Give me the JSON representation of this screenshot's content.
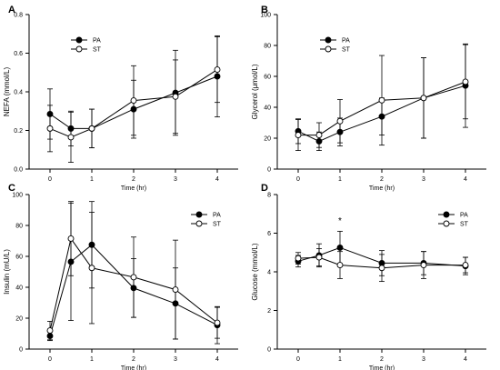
{
  "chart_data": [
    {
      "panel": "A",
      "type": "line",
      "ylabel": "NEFA (mmol/L)",
      "xlabel": "Time (hr)",
      "ylim": [
        0.0,
        0.8
      ],
      "yticks": [
        0.0,
        0.2,
        0.4,
        0.6,
        0.8
      ],
      "ytick_labels": [
        "0.0",
        "0.2",
        "0.4",
        "0.6",
        "0.8"
      ],
      "xlim": [
        -0.5,
        4.5
      ],
      "xticks": [
        0,
        1,
        2,
        3,
        4
      ],
      "xtick_labels": [
        "0",
        "1",
        "2",
        "3",
        "4"
      ],
      "legend_position": "upper-left",
      "annotations": [],
      "series": [
        {
          "name": "PA",
          "marker": "filled",
          "x": [
            0,
            0.5,
            1,
            2,
            3,
            4
          ],
          "y": [
            0.285,
            0.21,
            0.21,
            0.31,
            0.395,
            0.48
          ],
          "err": [
            0.13,
            0.09,
            0.1,
            0.15,
            0.22,
            0.21
          ]
        },
        {
          "name": "ST",
          "marker": "open",
          "x": [
            0,
            0.5,
            1,
            2,
            3,
            4
          ],
          "y": [
            0.21,
            0.165,
            0.21,
            0.355,
            0.375,
            0.515
          ],
          "err": [
            0.12,
            0.13,
            0.1,
            0.18,
            0.19,
            0.17
          ]
        }
      ]
    },
    {
      "panel": "B",
      "type": "line",
      "ylabel": "Glycerol (μmol/L)",
      "xlabel": "Time (hr)",
      "ylim": [
        0,
        100
      ],
      "yticks": [
        0,
        20,
        40,
        60,
        80,
        100
      ],
      "ytick_labels": [
        "0",
        "20",
        "40",
        "60",
        "80",
        "100"
      ],
      "xlim": [
        -0.5,
        4.5
      ],
      "xticks": [
        0,
        1,
        2,
        3,
        4
      ],
      "xtick_labels": [
        "0",
        "1",
        "2",
        "3",
        "4"
      ],
      "legend_position": "upper-left",
      "annotations": [],
      "series": [
        {
          "name": "PA",
          "marker": "filled",
          "x": [
            0,
            0.5,
            1,
            2,
            3,
            4
          ],
          "y": [
            24.5,
            18,
            24,
            34,
            46,
            54
          ],
          "err": [
            8,
            6,
            9,
            12,
            26,
            27
          ]
        },
        {
          "name": "ST",
          "marker": "open",
          "x": [
            0,
            0.5,
            1,
            2,
            3,
            4
          ],
          "y": [
            22,
            22,
            31,
            44.5,
            46,
            56.5
          ],
          "err": [
            10,
            8,
            14,
            29,
            26,
            24
          ]
        }
      ]
    },
    {
      "panel": "C",
      "type": "line",
      "ylabel": "Insulin (mU/L)",
      "xlabel": "Time (hr)",
      "ylim": [
        0,
        100
      ],
      "yticks": [
        0,
        20,
        40,
        60,
        80,
        100
      ],
      "ytick_labels": [
        "0",
        "20",
        "40",
        "60",
        "80",
        "100"
      ],
      "xlim": [
        -0.5,
        4.5
      ],
      "xticks": [
        0,
        1,
        2,
        3,
        4
      ],
      "xtick_labels": [
        "0",
        "1",
        "2",
        "3",
        "4"
      ],
      "legend_position": "upper-right",
      "annotations": [],
      "series": [
        {
          "name": "PA",
          "marker": "filled",
          "x": [
            0,
            0.5,
            1,
            2,
            3,
            4
          ],
          "y": [
            8.5,
            56.5,
            67.5,
            39.5,
            29.5,
            15.5
          ],
          "err": [
            3,
            38,
            28,
            19,
            23,
            12
          ]
        },
        {
          "name": "ST",
          "marker": "open",
          "x": [
            0,
            0.5,
            1,
            2,
            3,
            4
          ],
          "y": [
            12,
            71.5,
            52.5,
            46.5,
            38.5,
            17
          ],
          "err": [
            6,
            24,
            36,
            26,
            32,
            10
          ]
        }
      ]
    },
    {
      "panel": "D",
      "type": "line",
      "ylabel": "Glucose (mmol/L)",
      "xlabel": "Time (hr)",
      "ylim": [
        0,
        8
      ],
      "yticks": [
        0,
        2,
        4,
        6,
        8
      ],
      "ytick_labels": [
        "0",
        "2",
        "4",
        "6",
        "8"
      ],
      "xlim": [
        -0.5,
        4.5
      ],
      "xticks": [
        0,
        1,
        2,
        3,
        4
      ],
      "xtick_labels": [
        "0",
        "1",
        "2",
        "3",
        "4"
      ],
      "legend_position": "upper-right",
      "annotations": [
        {
          "text": "*",
          "x": 1,
          "y": 6.5
        }
      ],
      "series": [
        {
          "name": "PA",
          "marker": "filled",
          "x": [
            0,
            0.5,
            1,
            2,
            3,
            4
          ],
          "y": [
            4.55,
            4.85,
            5.25,
            4.45,
            4.45,
            4.3
          ],
          "err": [
            0.3,
            0.6,
            0.85,
            0.65,
            0.6,
            0.45
          ]
        },
        {
          "name": "ST",
          "marker": "open",
          "x": [
            0,
            0.5,
            1,
            2,
            3,
            4
          ],
          "y": [
            4.7,
            4.75,
            4.35,
            4.2,
            4.35,
            4.35
          ],
          "err": [
            0.3,
            0.45,
            0.7,
            0.7,
            0.7,
            0.4
          ]
        }
      ]
    }
  ]
}
